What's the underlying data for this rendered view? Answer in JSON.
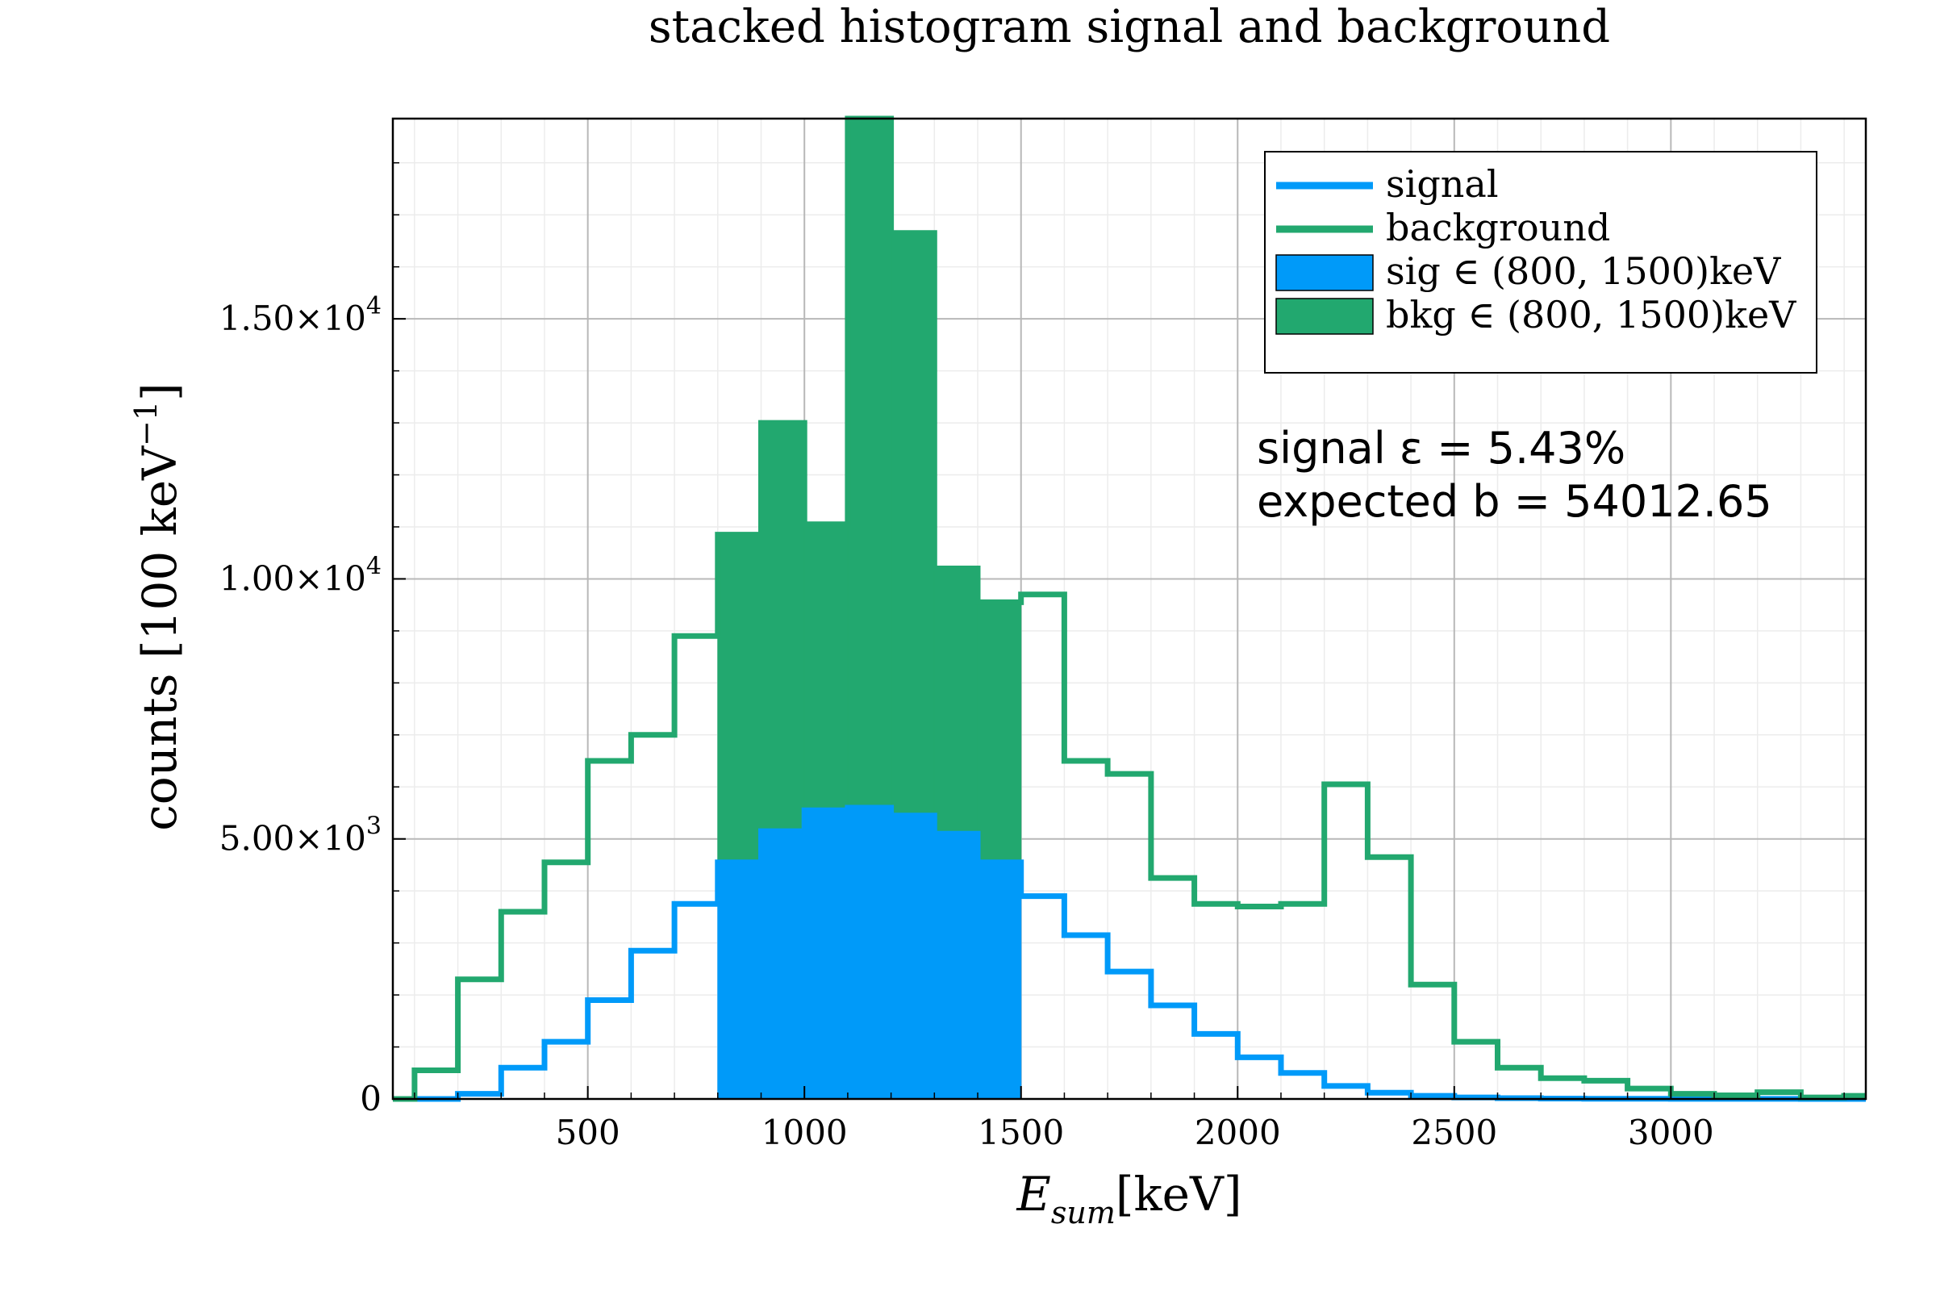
{
  "chart_data": {
    "type": "histogram",
    "title": "stacked histogram signal and background",
    "xlabel": {
      "main": "E",
      "sub": "sum",
      "unit": "[keV]"
    },
    "ylabel": {
      "main": "counts [100 keV",
      "sup": "−1",
      "close": "]"
    },
    "xlim": [
      50,
      3450
    ],
    "ylim": [
      0,
      18850
    ],
    "x_ticks": [
      {
        "value": 500,
        "label": "500"
      },
      {
        "value": 1000,
        "label": "1000"
      },
      {
        "value": 1500,
        "label": "1500"
      },
      {
        "value": 2000,
        "label": "2000"
      },
      {
        "value": 2500,
        "label": "2500"
      },
      {
        "value": 3000,
        "label": "3000"
      }
    ],
    "y_ticks": [
      {
        "value": 0,
        "mant": "0",
        "exp": ""
      },
      {
        "value": 5000,
        "mant": "5.00×10",
        "exp": "3"
      },
      {
        "value": 10000,
        "mant": "1.00×10",
        "exp": "4"
      },
      {
        "value": 15000,
        "mant": "1.50×10",
        "exp": "4"
      }
    ],
    "y_minor_step": 1000,
    "x_minor_step": 100,
    "grid": true,
    "bin_edges": [
      0,
      100,
      200,
      300,
      400,
      500,
      600,
      700,
      800,
      900,
      1000,
      1100,
      1200,
      1300,
      1400,
      1500,
      1600,
      1700,
      1800,
      1900,
      2000,
      2100,
      2200,
      2300,
      2400,
      2500,
      2600,
      2700,
      2800,
      2900,
      3000,
      3100,
      3200,
      3300,
      3400,
      3500
    ],
    "series": [
      {
        "name": "signal",
        "kind": "step",
        "color": "#009af9",
        "values": [
          0,
          0,
          100,
          600,
          1100,
          1900,
          2850,
          3750,
          4550,
          5150,
          5550,
          5600,
          5450,
          5100,
          4550,
          3900,
          3150,
          2450,
          1800,
          1250,
          800,
          500,
          250,
          120,
          60,
          30,
          15,
          8,
          5,
          3,
          2,
          1,
          1,
          0,
          0
        ]
      },
      {
        "name": "background",
        "kind": "step",
        "color": "#22a86f",
        "values": [
          0,
          550,
          2300,
          3600,
          4550,
          6500,
          7000,
          8900,
          10850,
          13000,
          11050,
          18850,
          16650,
          10200,
          9550,
          9700,
          6500,
          6250,
          4250,
          3750,
          3700,
          3750,
          6050,
          4650,
          2200,
          1100,
          600,
          400,
          350,
          200,
          100,
          70,
          130,
          30,
          60
        ]
      },
      {
        "name": "sig ∈ (800, 1500)keV",
        "kind": "filled",
        "color": "#009af9",
        "range": [
          800,
          1500
        ],
        "values": [
          4550,
          5150,
          5550,
          5600,
          5450,
          5100,
          4550
        ]
      },
      {
        "name": "bkg ∈ (800, 1500)keV",
        "kind": "filled-stacked",
        "color": "#22a86f",
        "range": [
          800,
          1500
        ],
        "values": [
          6300,
          7850,
          5500,
          13250,
          11200,
          5100,
          5000
        ]
      }
    ],
    "legend_position": "top-right",
    "annotations": [
      {
        "text": "signal ε = 5.43%"
      },
      {
        "text": "expected b = 54012.65"
      }
    ]
  }
}
